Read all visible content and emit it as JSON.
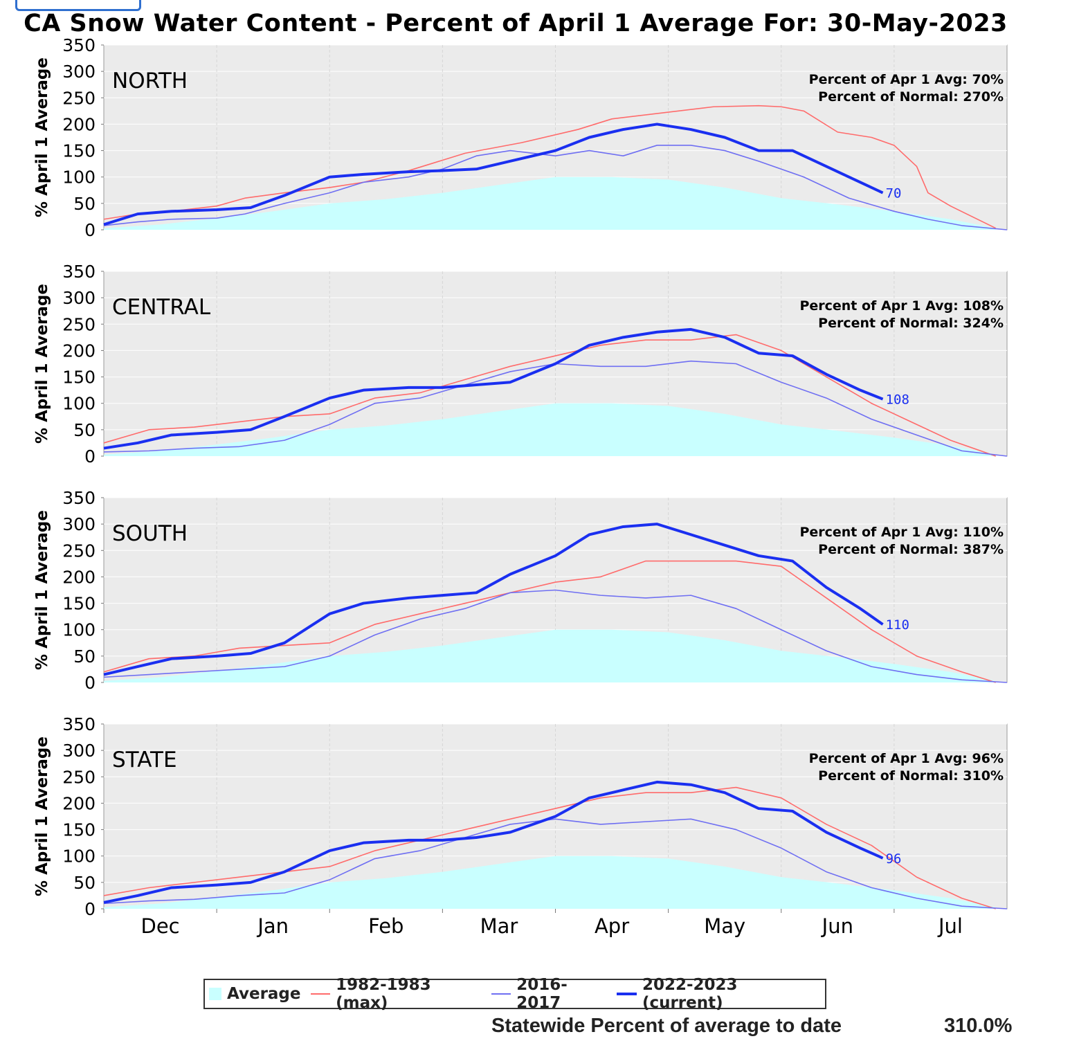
{
  "title": "CA Snow Water Content - Percent of April 1 Average For: 30-May-2023",
  "footer": {
    "label": "Statewide Percent of average to date",
    "value": "310.0%"
  },
  "legend": [
    {
      "name": "Average",
      "color": "#c9ffff",
      "kind": "fill"
    },
    {
      "name": "1982-1983 (max)",
      "color": "#ff6b6b",
      "kind": "line"
    },
    {
      "name": "2016-2017",
      "color": "#6f6ff2",
      "kind": "line"
    },
    {
      "name": "2022-2023 (current)",
      "color": "#1a2ff0",
      "kind": "thick-line"
    }
  ],
  "chart_data": [
    {
      "type": "area",
      "title": "NORTH",
      "ylabel": "% April 1 Average",
      "ylim": [
        0,
        350
      ],
      "y_ticks": [
        0,
        50,
        100,
        150,
        200,
        250,
        300,
        350
      ],
      "x_ticks": [
        "Dec",
        "Jan",
        "Feb",
        "Mar",
        "Apr",
        "May",
        "Jun",
        "Jul"
      ],
      "x_unit": "months from Nov 15",
      "xlim": [
        0,
        8
      ],
      "stats": [
        "Percent of Apr 1 Avg: 70%",
        "Percent of Normal: 270%"
      ],
      "end_label": "70",
      "series": [
        {
          "name": "Average",
          "x": [
            0,
            0.5,
            1,
            1.5,
            2,
            2.5,
            3,
            3.5,
            4,
            4.5,
            5,
            5.5,
            6,
            6.5,
            7,
            7.5,
            7.9
          ],
          "y": [
            3,
            10,
            22,
            35,
            50,
            58,
            70,
            85,
            100,
            100,
            95,
            80,
            60,
            48,
            35,
            20,
            3
          ]
        },
        {
          "name": "1982-1983 (max)",
          "x": [
            0,
            0.3,
            0.6,
            1,
            1.25,
            1.6,
            2,
            2.3,
            2.7,
            3.2,
            3.7,
            4.2,
            4.5,
            5.4,
            5.8,
            6,
            6.2,
            6.5,
            6.8,
            7,
            7.2,
            7.3,
            7.5,
            7.9
          ],
          "y": [
            20,
            30,
            35,
            45,
            60,
            70,
            80,
            90,
            112,
            145,
            165,
            190,
            210,
            233,
            235,
            233,
            225,
            185,
            175,
            160,
            120,
            70,
            45,
            3
          ]
        },
        {
          "name": "2016-2017",
          "x": [
            0,
            0.3,
            0.6,
            1,
            1.25,
            1.6,
            2,
            2.3,
            2.7,
            3,
            3.3,
            3.6,
            4,
            4.3,
            4.6,
            4.9,
            5.2,
            5.5,
            5.8,
            6.2,
            6.6,
            7,
            7.3,
            7.6,
            8
          ],
          "y": [
            8,
            15,
            20,
            22,
            30,
            50,
            70,
            90,
            100,
            115,
            140,
            150,
            140,
            150,
            140,
            160,
            160,
            150,
            130,
            100,
            60,
            35,
            20,
            8,
            0
          ]
        },
        {
          "name": "2022-2023 (current)",
          "x": [
            0,
            0.3,
            0.6,
            1,
            1.3,
            1.6,
            2,
            2.3,
            2.7,
            3,
            3.3,
            3.6,
            4,
            4.3,
            4.6,
            4.9,
            5.2,
            5.5,
            5.8,
            6.1,
            6.4,
            6.7,
            6.9
          ],
          "y": [
            10,
            30,
            35,
            38,
            42,
            65,
            100,
            105,
            110,
            112,
            115,
            130,
            150,
            175,
            190,
            200,
            190,
            175,
            150,
            150,
            120,
            90,
            70
          ]
        }
      ]
    },
    {
      "type": "area",
      "title": "CENTRAL",
      "ylabel": "% April 1 Average",
      "ylim": [
        0,
        350
      ],
      "y_ticks": [
        0,
        50,
        100,
        150,
        200,
        250,
        300,
        350
      ],
      "x_ticks": [
        "Dec",
        "Jan",
        "Feb",
        "Mar",
        "Apr",
        "May",
        "Jun",
        "Jul"
      ],
      "x_unit": "months from Nov 15",
      "xlim": [
        0,
        8
      ],
      "stats": [
        "Percent of Apr 1 Avg: 108%",
        "Percent of Normal: 324%"
      ],
      "end_label": "108",
      "series": [
        {
          "name": "Average",
          "x": [
            0,
            0.5,
            1,
            1.5,
            2,
            2.5,
            3,
            3.5,
            4,
            4.5,
            5,
            5.5,
            6,
            6.5,
            7,
            7.5,
            7.9
          ],
          "y": [
            3,
            10,
            22,
            35,
            50,
            58,
            70,
            85,
            100,
            100,
            95,
            80,
            60,
            48,
            35,
            20,
            3
          ]
        },
        {
          "name": "1982-1983 (max)",
          "x": [
            0,
            0.4,
            0.8,
            1.2,
            1.6,
            2,
            2.4,
            2.8,
            3.2,
            3.6,
            4,
            4.4,
            4.8,
            5.2,
            5.6,
            6,
            6.4,
            6.8,
            7.2,
            7.5,
            7.9
          ],
          "y": [
            25,
            50,
            55,
            65,
            75,
            80,
            110,
            120,
            145,
            170,
            190,
            210,
            220,
            220,
            230,
            200,
            150,
            100,
            60,
            30,
            0
          ]
        },
        {
          "name": "2016-2017",
          "x": [
            0,
            0.4,
            0.8,
            1.2,
            1.6,
            2,
            2.4,
            2.8,
            3.2,
            3.6,
            4,
            4.4,
            4.8,
            5.2,
            5.6,
            6,
            6.4,
            6.8,
            7.2,
            7.6,
            8
          ],
          "y": [
            8,
            10,
            15,
            18,
            30,
            60,
            100,
            110,
            135,
            160,
            175,
            170,
            170,
            180,
            175,
            140,
            110,
            70,
            40,
            10,
            0
          ]
        },
        {
          "name": "2022-2023 (current)",
          "x": [
            0,
            0.3,
            0.6,
            1,
            1.3,
            1.6,
            2,
            2.3,
            2.7,
            3,
            3.3,
            3.6,
            4,
            4.3,
            4.6,
            4.9,
            5.2,
            5.5,
            5.8,
            6.1,
            6.4,
            6.7,
            6.9
          ],
          "y": [
            15,
            25,
            40,
            45,
            50,
            75,
            110,
            125,
            130,
            130,
            135,
            140,
            175,
            210,
            225,
            235,
            240,
            225,
            195,
            190,
            155,
            125,
            108
          ]
        }
      ]
    },
    {
      "type": "area",
      "title": "SOUTH",
      "ylabel": "% April 1 Average",
      "ylim": [
        0,
        350
      ],
      "y_ticks": [
        0,
        50,
        100,
        150,
        200,
        250,
        300,
        350
      ],
      "x_ticks": [
        "Dec",
        "Jan",
        "Feb",
        "Mar",
        "Apr",
        "May",
        "Jun",
        "Jul"
      ],
      "x_unit": "months from Nov 15",
      "xlim": [
        0,
        8
      ],
      "stats": [
        "Percent of Apr 1 Avg: 110%",
        "Percent of Normal: 387%"
      ],
      "end_label": "110",
      "series": [
        {
          "name": "Average",
          "x": [
            0,
            0.5,
            1,
            1.5,
            2,
            2.5,
            3,
            3.5,
            4,
            4.5,
            5,
            5.5,
            6,
            6.5,
            7,
            7.5,
            7.9
          ],
          "y": [
            3,
            10,
            22,
            35,
            50,
            58,
            70,
            85,
            100,
            100,
            95,
            80,
            60,
            48,
            35,
            20,
            3
          ]
        },
        {
          "name": "1982-1983 (max)",
          "x": [
            0,
            0.4,
            0.8,
            1.2,
            1.6,
            2,
            2.4,
            2.8,
            3.2,
            3.6,
            4,
            4.4,
            4.8,
            5.2,
            5.6,
            6,
            6.4,
            6.8,
            7.2,
            7.6,
            7.9
          ],
          "y": [
            20,
            45,
            50,
            65,
            70,
            75,
            110,
            130,
            150,
            170,
            190,
            200,
            230,
            230,
            230,
            220,
            160,
            100,
            50,
            20,
            0
          ]
        },
        {
          "name": "2016-2017",
          "x": [
            0,
            0.4,
            0.8,
            1.2,
            1.6,
            2,
            2.4,
            2.8,
            3.2,
            3.6,
            4,
            4.4,
            4.8,
            5.2,
            5.6,
            6,
            6.4,
            6.8,
            7.2,
            7.6,
            8
          ],
          "y": [
            10,
            15,
            20,
            25,
            30,
            50,
            90,
            120,
            140,
            170,
            175,
            165,
            160,
            165,
            140,
            100,
            60,
            30,
            15,
            5,
            0
          ]
        },
        {
          "name": "2022-2023 (current)",
          "x": [
            0,
            0.3,
            0.6,
            1,
            1.3,
            1.6,
            2,
            2.3,
            2.7,
            3,
            3.3,
            3.6,
            4,
            4.3,
            4.6,
            4.9,
            5.2,
            5.5,
            5.8,
            6.1,
            6.4,
            6.7,
            6.9
          ],
          "y": [
            15,
            30,
            45,
            50,
            55,
            75,
            130,
            150,
            160,
            165,
            170,
            205,
            240,
            280,
            295,
            300,
            280,
            260,
            240,
            230,
            180,
            140,
            110
          ]
        }
      ]
    },
    {
      "type": "area",
      "title": "STATE",
      "ylabel": "% April 1 Average",
      "ylim": [
        0,
        350
      ],
      "y_ticks": [
        0,
        50,
        100,
        150,
        200,
        250,
        300,
        350
      ],
      "x_ticks": [
        "Dec",
        "Jan",
        "Feb",
        "Mar",
        "Apr",
        "May",
        "Jun",
        "Jul"
      ],
      "x_unit": "months from Nov 15",
      "xlim": [
        0,
        8
      ],
      "stats": [
        "Percent of Apr 1 Avg: 96%",
        "Percent of Normal: 310%"
      ],
      "end_label": "96",
      "series": [
        {
          "name": "Average",
          "x": [
            0,
            0.5,
            1,
            1.5,
            2,
            2.5,
            3,
            3.5,
            4,
            4.5,
            5,
            5.5,
            6,
            6.5,
            7,
            7.5,
            7.9
          ],
          "y": [
            3,
            10,
            22,
            35,
            50,
            58,
            70,
            85,
            100,
            100,
            95,
            80,
            60,
            48,
            35,
            20,
            3
          ]
        },
        {
          "name": "1982-1983 (max)",
          "x": [
            0,
            0.4,
            0.8,
            1.2,
            1.6,
            2,
            2.4,
            2.8,
            3.2,
            3.6,
            4,
            4.4,
            4.8,
            5.2,
            5.6,
            6,
            6.4,
            6.8,
            7.2,
            7.6,
            7.9
          ],
          "y": [
            25,
            40,
            50,
            60,
            70,
            80,
            110,
            130,
            150,
            170,
            190,
            210,
            220,
            220,
            230,
            210,
            160,
            120,
            60,
            20,
            0
          ]
        },
        {
          "name": "2016-2017",
          "x": [
            0,
            0.4,
            0.8,
            1.2,
            1.6,
            2,
            2.4,
            2.8,
            3.2,
            3.6,
            4,
            4.4,
            4.8,
            5.2,
            5.6,
            6,
            6.4,
            6.8,
            7.2,
            7.6,
            8
          ],
          "y": [
            10,
            15,
            18,
            25,
            30,
            55,
            95,
            110,
            135,
            160,
            170,
            160,
            165,
            170,
            150,
            115,
            70,
            40,
            20,
            5,
            0
          ]
        },
        {
          "name": "2022-2023 (current)",
          "x": [
            0,
            0.3,
            0.6,
            1,
            1.3,
            1.6,
            2,
            2.3,
            2.7,
            3,
            3.3,
            3.6,
            4,
            4.3,
            4.6,
            4.9,
            5.2,
            5.5,
            5.8,
            6.1,
            6.4,
            6.7,
            6.9
          ],
          "y": [
            12,
            25,
            40,
            45,
            50,
            70,
            110,
            125,
            130,
            130,
            135,
            145,
            175,
            210,
            225,
            240,
            235,
            220,
            190,
            185,
            145,
            115,
            96
          ]
        }
      ]
    }
  ]
}
